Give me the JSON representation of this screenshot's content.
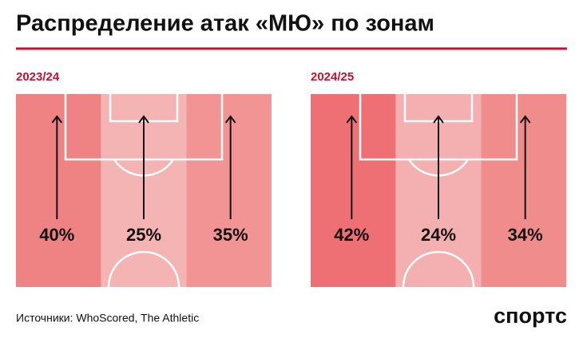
{
  "title": "Распределение атак «МЮ» по зонам",
  "source": "Источники: WhoScored, The Athletic",
  "logo": "спортс",
  "chart_data": [
    {
      "type": "pitch",
      "title": "2023/24",
      "values": [
        40,
        25,
        35
      ],
      "value_labels": [
        "40%",
        "25%",
        "35%"
      ],
      "colors": [
        "#ef8282",
        "#f4b4b4",
        "#f29494"
      ]
    },
    {
      "type": "pitch",
      "title": "2024/25",
      "values": [
        42,
        24,
        34
      ],
      "value_labels": [
        "42%",
        "24%",
        "34%"
      ],
      "colors": [
        "#ee7074",
        "#f4b0b0",
        "#f18c8c"
      ]
    }
  ]
}
